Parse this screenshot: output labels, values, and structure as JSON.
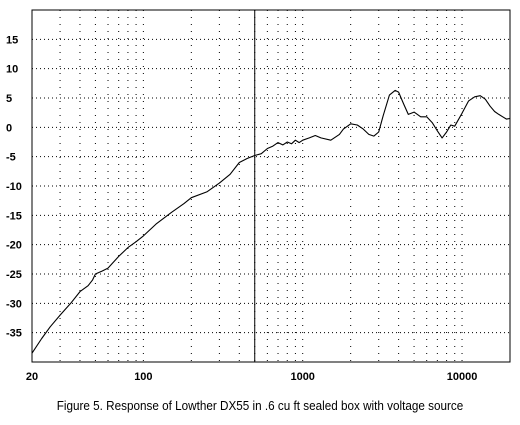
{
  "chart_data": {
    "type": "line",
    "title": "",
    "caption": "Figure 5.  Response of Lowther DX55 in .6 cu ft sealed box with voltage source",
    "xlabel": "",
    "ylabel": "",
    "x_scale": "log",
    "xlim": [
      20,
      20000
    ],
    "ylim": [
      -40,
      20
    ],
    "x_tick_labels": [
      "20",
      "100",
      "1000",
      "10000"
    ],
    "y_tick_labels": [
      "15",
      "10",
      "5",
      "0",
      "-5",
      "-10",
      "-15",
      "-20",
      "-25",
      "-30",
      "-35"
    ],
    "grid": true,
    "marker_line_x": 500,
    "series": [
      {
        "name": "",
        "color": "#000000",
        "x": [
          20,
          23,
          26,
          30,
          35,
          40,
          45,
          48,
          50,
          55,
          60,
          70,
          80,
          90,
          100,
          120,
          150,
          180,
          200,
          250,
          300,
          350,
          400,
          450,
          500,
          550,
          600,
          650,
          700,
          750,
          800,
          850,
          900,
          950,
          1000,
          1100,
          1200,
          1300,
          1500,
          1700,
          1800,
          2000,
          2200,
          2400,
          2600,
          2800,
          3000,
          3200,
          3500,
          3800,
          4000,
          4300,
          4600,
          5000,
          5500,
          6000,
          6500,
          7000,
          7500,
          8000,
          8500,
          9000,
          10000,
          11000,
          12000,
          13000,
          14000,
          15000,
          16000,
          17000,
          18000,
          19000,
          20000
        ],
        "values": [
          -38.5,
          -36,
          -34,
          -32,
          -30,
          -28,
          -27,
          -26,
          -25,
          -24.5,
          -24,
          -22,
          -20.5,
          -19.5,
          -18.5,
          -16.5,
          -14.5,
          -13,
          -12,
          -11,
          -9.5,
          -8,
          -6,
          -5.3,
          -4.8,
          -4.5,
          -3.6,
          -3.2,
          -2.6,
          -3.0,
          -2.5,
          -2.8,
          -2.2,
          -2.6,
          -2.2,
          -1.8,
          -1.4,
          -1.8,
          -2.2,
          -1.2,
          -0.3,
          0.6,
          0.4,
          -0.3,
          -1.2,
          -1.5,
          -0.8,
          2,
          5.5,
          6.3,
          6,
          4,
          2.2,
          2.6,
          1.8,
          1.8,
          0.8,
          -0.6,
          -1.8,
          -0.8,
          0.4,
          0.2,
          2.4,
          4.5,
          5.2,
          5.4,
          4.8,
          3.6,
          2.7,
          2.2,
          1.8,
          1.4,
          1.5
        ]
      }
    ]
  }
}
